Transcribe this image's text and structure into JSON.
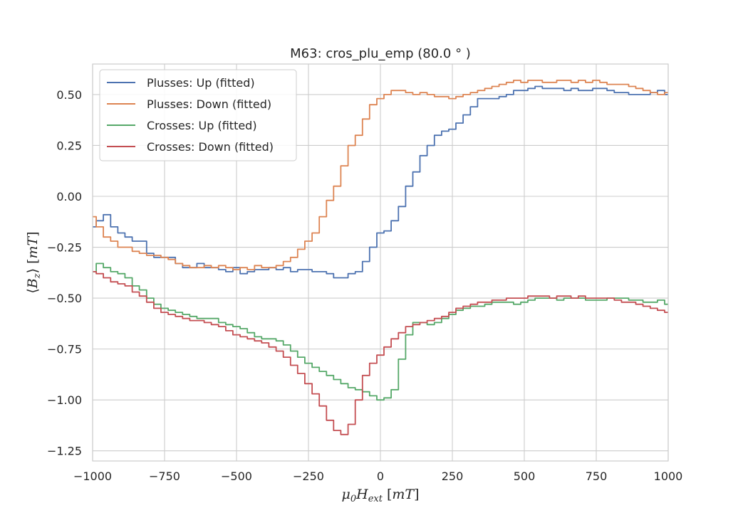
{
  "chart_data": {
    "type": "line",
    "title": "M63: cros_plu_emp (80.0 ° )",
    "xlabel": "μ₀H_ext [mT]",
    "ylabel": "⟨B_z⟩ [mT]",
    "xlim": [
      -1000,
      1000
    ],
    "ylim": [
      -1.3,
      0.65
    ],
    "xticks": [
      -1000,
      -750,
      -500,
      -250,
      0,
      250,
      500,
      750,
      1000
    ],
    "xtick_labels": [
      "−1000",
      "−750",
      "−500",
      "−250",
      "0",
      "250",
      "500",
      "750",
      "1000"
    ],
    "yticks": [
      -1.25,
      -1.0,
      -0.75,
      -0.5,
      -0.25,
      0.0,
      0.25,
      0.5
    ],
    "ytick_labels": [
      "−1.25",
      "−1.00",
      "−0.75",
      "−0.50",
      "−0.25",
      "0.00",
      "0.25",
      "0.50"
    ],
    "grid": true,
    "legend_position": "top-left",
    "series": [
      {
        "name": "Plusses: Up (fitted)",
        "color": "#4c72b0",
        "x": [
          -1000,
          -975,
          -950,
          -925,
          -900,
          -875,
          -850,
          -825,
          -800,
          -775,
          -750,
          -725,
          -700,
          -675,
          -650,
          -625,
          -600,
          -575,
          -550,
          -525,
          -500,
          -475,
          -450,
          -425,
          -400,
          -375,
          -350,
          -325,
          -300,
          -275,
          -250,
          -225,
          -200,
          -175,
          -150,
          -125,
          -100,
          -75,
          -50,
          -25,
          0,
          25,
          50,
          75,
          100,
          125,
          150,
          175,
          200,
          225,
          250,
          275,
          300,
          325,
          350,
          375,
          400,
          425,
          450,
          475,
          500,
          525,
          550,
          575,
          600,
          625,
          650,
          675,
          700,
          725,
          750,
          775,
          800,
          825,
          850,
          875,
          900,
          925,
          950,
          975,
          1000
        ],
        "y": [
          -0.15,
          -0.12,
          -0.09,
          -0.15,
          -0.18,
          -0.2,
          -0.22,
          -0.22,
          -0.28,
          -0.3,
          -0.3,
          -0.3,
          -0.33,
          -0.35,
          -0.35,
          -0.33,
          -0.35,
          -0.35,
          -0.36,
          -0.37,
          -0.35,
          -0.38,
          -0.37,
          -0.36,
          -0.36,
          -0.35,
          -0.36,
          -0.35,
          -0.37,
          -0.36,
          -0.36,
          -0.37,
          -0.37,
          -0.38,
          -0.4,
          -0.4,
          -0.38,
          -0.37,
          -0.32,
          -0.25,
          -0.18,
          -0.17,
          -0.12,
          -0.05,
          0.05,
          0.12,
          0.2,
          0.25,
          0.3,
          0.32,
          0.33,
          0.36,
          0.4,
          0.44,
          0.48,
          0.48,
          0.48,
          0.49,
          0.5,
          0.52,
          0.52,
          0.53,
          0.54,
          0.53,
          0.53,
          0.53,
          0.52,
          0.53,
          0.52,
          0.52,
          0.53,
          0.53,
          0.52,
          0.51,
          0.51,
          0.5,
          0.5,
          0.5,
          0.51,
          0.52,
          0.5
        ]
      },
      {
        "name": "Plusses: Down (fitted)",
        "color": "#dd8452",
        "x": [
          -1000,
          -975,
          -950,
          -925,
          -900,
          -875,
          -850,
          -825,
          -800,
          -775,
          -750,
          -725,
          -700,
          -675,
          -650,
          -625,
          -600,
          -575,
          -550,
          -525,
          -500,
          -475,
          -450,
          -425,
          -400,
          -375,
          -350,
          -325,
          -300,
          -275,
          -250,
          -225,
          -200,
          -175,
          -150,
          -125,
          -100,
          -75,
          -50,
          -25,
          0,
          25,
          50,
          75,
          100,
          125,
          150,
          175,
          200,
          225,
          250,
          275,
          300,
          325,
          350,
          375,
          400,
          425,
          450,
          475,
          500,
          525,
          550,
          575,
          600,
          625,
          650,
          675,
          700,
          725,
          750,
          775,
          800,
          825,
          850,
          875,
          900,
          925,
          950,
          975,
          1000
        ],
        "y": [
          -0.1,
          -0.15,
          -0.2,
          -0.22,
          -0.25,
          -0.25,
          -0.27,
          -0.28,
          -0.29,
          -0.29,
          -0.3,
          -0.31,
          -0.33,
          -0.34,
          -0.35,
          -0.35,
          -0.34,
          -0.35,
          -0.34,
          -0.35,
          -0.36,
          -0.35,
          -0.36,
          -0.34,
          -0.35,
          -0.35,
          -0.34,
          -0.32,
          -0.3,
          -0.26,
          -0.22,
          -0.18,
          -0.1,
          -0.02,
          0.05,
          0.15,
          0.25,
          0.3,
          0.38,
          0.45,
          0.48,
          0.5,
          0.52,
          0.52,
          0.51,
          0.5,
          0.51,
          0.5,
          0.49,
          0.49,
          0.48,
          0.49,
          0.5,
          0.51,
          0.52,
          0.53,
          0.54,
          0.55,
          0.56,
          0.57,
          0.56,
          0.57,
          0.57,
          0.56,
          0.56,
          0.57,
          0.57,
          0.56,
          0.57,
          0.56,
          0.57,
          0.56,
          0.55,
          0.55,
          0.55,
          0.54,
          0.53,
          0.52,
          0.51,
          0.5,
          0.51
        ]
      },
      {
        "name": "Crosses: Up (fitted)",
        "color": "#55a868",
        "x": [
          -1000,
          -975,
          -950,
          -925,
          -900,
          -875,
          -850,
          -825,
          -800,
          -775,
          -750,
          -725,
          -700,
          -675,
          -650,
          -625,
          -600,
          -575,
          -550,
          -525,
          -500,
          -475,
          -450,
          -425,
          -400,
          -375,
          -350,
          -325,
          -300,
          -275,
          -250,
          -225,
          -200,
          -175,
          -150,
          -125,
          -100,
          -75,
          -50,
          -25,
          0,
          25,
          50,
          75,
          100,
          125,
          150,
          175,
          200,
          225,
          250,
          275,
          300,
          325,
          350,
          375,
          400,
          425,
          450,
          475,
          500,
          525,
          550,
          575,
          600,
          625,
          650,
          675,
          700,
          725,
          750,
          775,
          800,
          825,
          850,
          875,
          900,
          925,
          950,
          975,
          1000
        ],
        "y": [
          -0.37,
          -0.33,
          -0.35,
          -0.37,
          -0.38,
          -0.4,
          -0.44,
          -0.46,
          -0.5,
          -0.53,
          -0.55,
          -0.56,
          -0.57,
          -0.58,
          -0.59,
          -0.6,
          -0.6,
          -0.6,
          -0.62,
          -0.63,
          -0.64,
          -0.65,
          -0.67,
          -0.69,
          -0.7,
          -0.7,
          -0.71,
          -0.73,
          -0.76,
          -0.79,
          -0.82,
          -0.84,
          -0.86,
          -0.88,
          -0.9,
          -0.92,
          -0.94,
          -0.95,
          -0.96,
          -0.98,
          -1.0,
          -0.99,
          -0.95,
          -0.8,
          -0.68,
          -0.62,
          -0.62,
          -0.63,
          -0.62,
          -0.6,
          -0.58,
          -0.56,
          -0.55,
          -0.54,
          -0.54,
          -0.53,
          -0.52,
          -0.52,
          -0.52,
          -0.53,
          -0.52,
          -0.51,
          -0.5,
          -0.5,
          -0.5,
          -0.51,
          -0.5,
          -0.5,
          -0.5,
          -0.51,
          -0.51,
          -0.51,
          -0.5,
          -0.5,
          -0.5,
          -0.51,
          -0.51,
          -0.52,
          -0.52,
          -0.51,
          -0.53
        ]
      },
      {
        "name": "Crosses: Down (fitted)",
        "color": "#c44e52",
        "x": [
          -1000,
          -975,
          -950,
          -925,
          -900,
          -875,
          -850,
          -825,
          -800,
          -775,
          -750,
          -725,
          -700,
          -675,
          -650,
          -625,
          -600,
          -575,
          -550,
          -525,
          -500,
          -475,
          -450,
          -425,
          -400,
          -375,
          -350,
          -325,
          -300,
          -275,
          -250,
          -225,
          -200,
          -175,
          -150,
          -125,
          -100,
          -75,
          -50,
          -25,
          0,
          25,
          50,
          75,
          100,
          125,
          150,
          175,
          200,
          225,
          250,
          275,
          300,
          325,
          350,
          375,
          400,
          425,
          450,
          475,
          500,
          525,
          550,
          575,
          600,
          625,
          650,
          675,
          700,
          725,
          750,
          775,
          800,
          825,
          850,
          875,
          900,
          925,
          950,
          975,
          1000
        ],
        "y": [
          -0.37,
          -0.38,
          -0.4,
          -0.42,
          -0.43,
          -0.44,
          -0.47,
          -0.49,
          -0.52,
          -0.55,
          -0.57,
          -0.58,
          -0.59,
          -0.6,
          -0.61,
          -0.61,
          -0.62,
          -0.63,
          -0.64,
          -0.66,
          -0.68,
          -0.69,
          -0.7,
          -0.71,
          -0.72,
          -0.74,
          -0.76,
          -0.79,
          -0.83,
          -0.87,
          -0.92,
          -0.97,
          -1.03,
          -1.1,
          -1.15,
          -1.17,
          -1.12,
          -1.0,
          -0.88,
          -0.82,
          -0.78,
          -0.74,
          -0.7,
          -0.67,
          -0.64,
          -0.63,
          -0.62,
          -0.61,
          -0.6,
          -0.59,
          -0.57,
          -0.55,
          -0.54,
          -0.53,
          -0.52,
          -0.52,
          -0.51,
          -0.51,
          -0.5,
          -0.5,
          -0.5,
          -0.49,
          -0.49,
          -0.49,
          -0.5,
          -0.49,
          -0.49,
          -0.5,
          -0.49,
          -0.5,
          -0.5,
          -0.5,
          -0.5,
          -0.51,
          -0.52,
          -0.52,
          -0.53,
          -0.54,
          -0.55,
          -0.56,
          -0.57
        ]
      }
    ]
  }
}
